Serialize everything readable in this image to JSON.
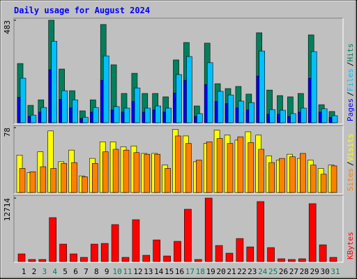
{
  "legend_separator": "/",
  "chart_data": [
    {
      "type": "bar",
      "title": "Daily usage for August 2024",
      "ylim": [
        0,
        483
      ],
      "yticks": [
        483
      ],
      "series": [
        {
          "name": "Hits",
          "color": "#00805c",
          "values": [
            279,
            82,
            108,
            483,
            253,
            151,
            56,
            108,
            463,
            273,
            138,
            233,
            138,
            138,
            122,
            296,
            378,
            79,
            375,
            184,
            161,
            171,
            135,
            424,
            154,
            128,
            122,
            138,
            414,
            85,
            53
          ]
        },
        {
          "name": "Files",
          "color": "#00c0ff",
          "values": [
            210,
            36,
            72,
            384,
            151,
            108,
            26,
            72,
            315,
            76,
            69,
            164,
            69,
            79,
            69,
            227,
            312,
            43,
            283,
            148,
            131,
            102,
            95,
            338,
            62,
            59,
            43,
            69,
            335,
            66,
            33
          ]
        },
        {
          "name": "Pages",
          "color": "#0000ff",
          "values": [
            120,
            30,
            50,
            250,
            110,
            70,
            20,
            50,
            200,
            60,
            50,
            100,
            50,
            60,
            50,
            140,
            200,
            30,
            180,
            100,
            90,
            70,
            60,
            220,
            40,
            40,
            30,
            50,
            210,
            50,
            25
          ]
        }
      ]
    },
    {
      "type": "bar",
      "ylim": [
        0,
        78
      ],
      "yticks": [
        78
      ],
      "series": [
        {
          "name": "Visits",
          "color": "#ffff00",
          "values": [
            45,
            24,
            49,
            74,
            37,
            51,
            20,
            41,
            61,
            61,
            55,
            56,
            47,
            47,
            33,
            76,
            68,
            37,
            59,
            75,
            69,
            63,
            73,
            69,
            44,
            39,
            46,
            41,
            39,
            29,
            33
          ]
        },
        {
          "name": "Sites",
          "color": "#ff8000",
          "values": [
            29,
            25,
            31,
            29,
            35,
            36,
            19,
            35,
            49,
            52,
            51,
            48,
            46,
            46,
            29,
            68,
            59,
            39,
            61,
            65,
            59,
            67,
            60,
            52,
            36,
            41,
            43,
            47,
            33,
            22,
            32
          ]
        }
      ]
    },
    {
      "type": "bar",
      "ylim": [
        0,
        12714
      ],
      "yticks": [
        12714
      ],
      "categories": [
        "1",
        "2",
        "3",
        "4",
        "5",
        "6",
        "7",
        "8",
        "9",
        "10",
        "11",
        "12",
        "13",
        "14",
        "15",
        "16",
        "17",
        "18",
        "19",
        "20",
        "21",
        "22",
        "23",
        "24",
        "25",
        "26",
        "27",
        "28",
        "29",
        "30",
        "31"
      ],
      "category_colors": [
        "#000000",
        "#000000",
        "#00805c",
        "#00805c",
        "#000000",
        "#000000",
        "#000000",
        "#000000",
        "#000000",
        "#00805c",
        "#00805c",
        "#000000",
        "#000000",
        "#000000",
        "#000000",
        "#000000",
        "#00805c",
        "#00805c",
        "#000000",
        "#000000",
        "#000000",
        "#000000",
        "#000000",
        "#00805c",
        "#00805c",
        "#000000",
        "#000000",
        "#000000",
        "#000000",
        "#000000",
        "#00805c"
      ],
      "series": [
        {
          "name": "KBytes",
          "color": "#ff0000",
          "values": [
            1537,
            419,
            419,
            8802,
            3493,
            1537,
            838,
            3493,
            3632,
            7405,
            838,
            8383,
            1257,
            4331,
            1118,
            4052,
            10478,
            419,
            12714,
            3214,
            1677,
            4611,
            2934,
            12016,
            2794,
            559,
            419,
            559,
            11597,
            3353,
            838
          ]
        }
      ]
    }
  ]
}
